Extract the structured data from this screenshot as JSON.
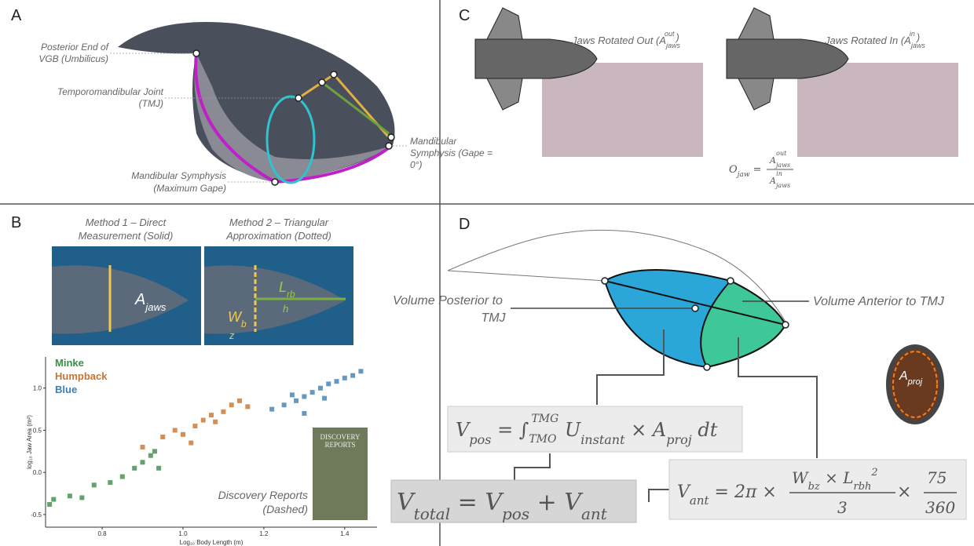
{
  "panel_a": {
    "letter": "A",
    "umbilicus": [
      "Posterior End of",
      "VGB (Umbilicus)"
    ],
    "tmj": [
      "Temporomandibular Joint",
      "(TMJ)"
    ],
    "max_gape": [
      "Mandibular Symphysis",
      "(Maximum Gape)"
    ],
    "zero_gape": [
      "Mandibular",
      "Symphysis (Gape =",
      "0°)"
    ]
  },
  "panel_b": {
    "letter": "B",
    "method1": [
      "Method 1 – Direct",
      "Measurement (Solid)"
    ],
    "method2": [
      "Method 2 – Triangular",
      "Approximation (Dotted)"
    ],
    "a_jaws": [
      "A",
      "jaws"
    ],
    "l_rb": [
      "L",
      "rb"
    ],
    "h": "h",
    "w_b": [
      "W",
      "b"
    ],
    "z": "z",
    "book_title": [
      "DISCOVERY",
      "REPORTS"
    ],
    "discovery": [
      "Discovery Reports",
      "(Dashed)"
    ]
  },
  "chart_data": {
    "type": "scatter",
    "x_label": "Log₁₀ Body Length (m)",
    "y_label": "log₁₀ Jaw Area (m²)",
    "xlim": [
      0.66,
      1.48
    ],
    "xticks": [
      0.8,
      {
        "value": 1,
        "label": "1.0"
      },
      1.2,
      1.4
    ],
    "ylim": [
      -0.65,
      1.37
    ],
    "yticks": [
      -0.5,
      {
        "value": 0,
        "label": "0.0"
      },
      0.5,
      {
        "value": 1,
        "label": "1.0"
      }
    ],
    "series": [
      {
        "name": "Minke",
        "color": "#3f8a4a",
        "x": [
          0.67,
          0.68,
          0.72,
          0.75,
          0.78,
          0.82,
          0.85,
          0.88,
          0.9,
          0.92,
          0.93,
          0.94
        ],
        "values": [
          -0.38,
          -0.32,
          -0.28,
          -0.3,
          -0.15,
          -0.12,
          -0.05,
          0.05,
          0.12,
          0.2,
          0.25,
          0.05
        ]
      },
      {
        "name": "Humpback",
        "color": "#c8742c",
        "x": [
          0.9,
          0.95,
          0.98,
          1.0,
          1.03,
          1.05,
          1.07,
          1.1,
          1.12,
          1.14,
          1.16,
          1.02,
          1.08
        ],
        "values": [
          0.3,
          0.42,
          0.5,
          0.45,
          0.55,
          0.62,
          0.68,
          0.72,
          0.8,
          0.85,
          0.78,
          0.35,
          0.6
        ]
      },
      {
        "name": "Blue",
        "color": "#3f7fb0",
        "x": [
          1.22,
          1.25,
          1.28,
          1.3,
          1.32,
          1.34,
          1.36,
          1.38,
          1.4,
          1.42,
          1.44,
          1.3,
          1.35,
          1.27
        ],
        "values": [
          0.75,
          0.8,
          0.85,
          0.9,
          0.95,
          1.0,
          1.05,
          1.08,
          1.12,
          1.15,
          1.2,
          0.7,
          0.88,
          0.92
        ]
      }
    ]
  },
  "panel_c": {
    "letter": "C",
    "out": [
      "Jaws Rotated Out (A",
      "jaws",
      "out",
      ")"
    ],
    "in": [
      "Jaws Rotated In (A",
      "jaws",
      "in",
      ")"
    ],
    "o_jaw": [
      "O",
      "jaw",
      " =",
      "A",
      "jaws",
      "out",
      "A",
      "jaws",
      "in"
    ]
  },
  "panel_d": {
    "letter": "D",
    "posterior": [
      "Volume Posterior to",
      "TMJ"
    ],
    "anterior": "Volume Anterior to TMJ",
    "a_proj": [
      "A",
      "proj"
    ],
    "eq_pos": [
      "V",
      "pos",
      " = ∫",
      "TMO",
      "TMG",
      " U",
      "instant",
      " × A",
      "proj",
      " dt"
    ],
    "eq_total": [
      "V",
      "total",
      " = V",
      "pos",
      " + V",
      "ant"
    ],
    "eq_ant": [
      "V",
      "ant",
      " = 2π × ",
      "W",
      "bz",
      " × L",
      "rbh",
      "2",
      "3",
      " × ",
      "75",
      "360"
    ]
  }
}
